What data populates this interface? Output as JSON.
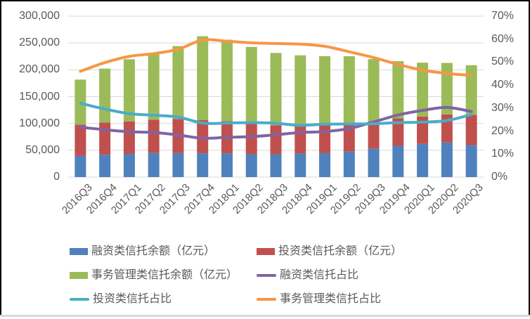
{
  "chart_data": {
    "type": "bar",
    "subtype": "stacked-bar-with-lines",
    "title": "",
    "categories": [
      "2016Q3",
      "2016Q4",
      "2017Q1",
      "2017Q2",
      "2017Q3",
      "2017Q4",
      "2018Q1",
      "2018Q2",
      "2018Q3",
      "2018Q4",
      "2019Q1",
      "2019Q2",
      "2019Q3",
      "2019Q4",
      "2020Q1",
      "2020Q2",
      "2020Q3"
    ],
    "series": [
      {
        "key": "financing-balance",
        "name": "融资类信托余额（亿元）",
        "kind": "bar",
        "axis": "left",
        "color": "#4F81BD",
        "values": [
          39400,
          41700,
          43300,
          44900,
          44700,
          44400,
          44300,
          42700,
          42600,
          44000,
          44600,
          47500,
          52800,
          58300,
          61900,
          64500,
          59500
        ]
      },
      {
        "key": "investment-balance",
        "name": "投资类信托余额（亿元）",
        "kind": "bar",
        "axis": "left",
        "color": "#C0504D",
        "values": [
          58400,
          59900,
          60600,
          62200,
          63700,
          61700,
          60200,
          57500,
          54100,
          51100,
          51800,
          52000,
          51000,
          51200,
          51000,
          52300,
          56700
        ]
      },
      {
        "key": "admin-balance",
        "name": "事务管理类信托余额（亿元）",
        "kind": "bar",
        "axis": "left",
        "color": "#9BBB59",
        "values": [
          83900,
          100600,
          115800,
          124300,
          135700,
          156400,
          151600,
          142500,
          134700,
          131900,
          129000,
          125800,
          116100,
          106600,
          100400,
          96000,
          92400
        ]
      },
      {
        "key": "financing-ratio",
        "name": "融资类信托占比",
        "kind": "line",
        "axis": "right",
        "color": "#8064A2",
        "values": [
          21.7,
          20.6,
          19.7,
          19.4,
          18.3,
          16.9,
          17.3,
          17.6,
          18.4,
          19.4,
          19.8,
          21.1,
          24.0,
          27.0,
          29.0,
          30.3,
          28.5
        ]
      },
      {
        "key": "investment-ratio",
        "name": "投资类信托占比",
        "kind": "line",
        "axis": "right",
        "color": "#4BACC6",
        "values": [
          32.1,
          29.6,
          27.6,
          26.9,
          26.1,
          23.5,
          23.5,
          23.7,
          23.4,
          22.5,
          23.0,
          23.1,
          23.2,
          23.7,
          23.9,
          24.6,
          27.2
        ]
      },
      {
        "key": "admin-ratio",
        "name": "事务管理类信托占比",
        "kind": "line",
        "axis": "right",
        "color": "#F79646",
        "values": [
          46.0,
          49.8,
          52.5,
          53.7,
          55.6,
          59.6,
          59.1,
          58.4,
          58.1,
          57.8,
          56.9,
          54.5,
          52.0,
          49.0,
          46.5,
          45.1,
          44.2
        ]
      }
    ],
    "left_axis": {
      "min": 0,
      "max": 300000,
      "step": 50000,
      "tick_labels": [
        "300,000",
        "250,000",
        "200,000",
        "150,000",
        "100,000",
        "50,000",
        "0"
      ]
    },
    "right_axis": {
      "min": 0,
      "max": 70,
      "step": 10,
      "tick_labels": [
        "70%",
        "60%",
        "50%",
        "40%",
        "30%",
        "20%",
        "10%",
        "0%"
      ]
    },
    "grid": true,
    "legend_position": "bottom"
  },
  "styles": {
    "background": "#FFFFFF",
    "text_color": "#595959",
    "gridline_color": "#D9D9D9",
    "frame_border_color": "#000000",
    "frame_bottom_color": "#D9D9D9"
  }
}
